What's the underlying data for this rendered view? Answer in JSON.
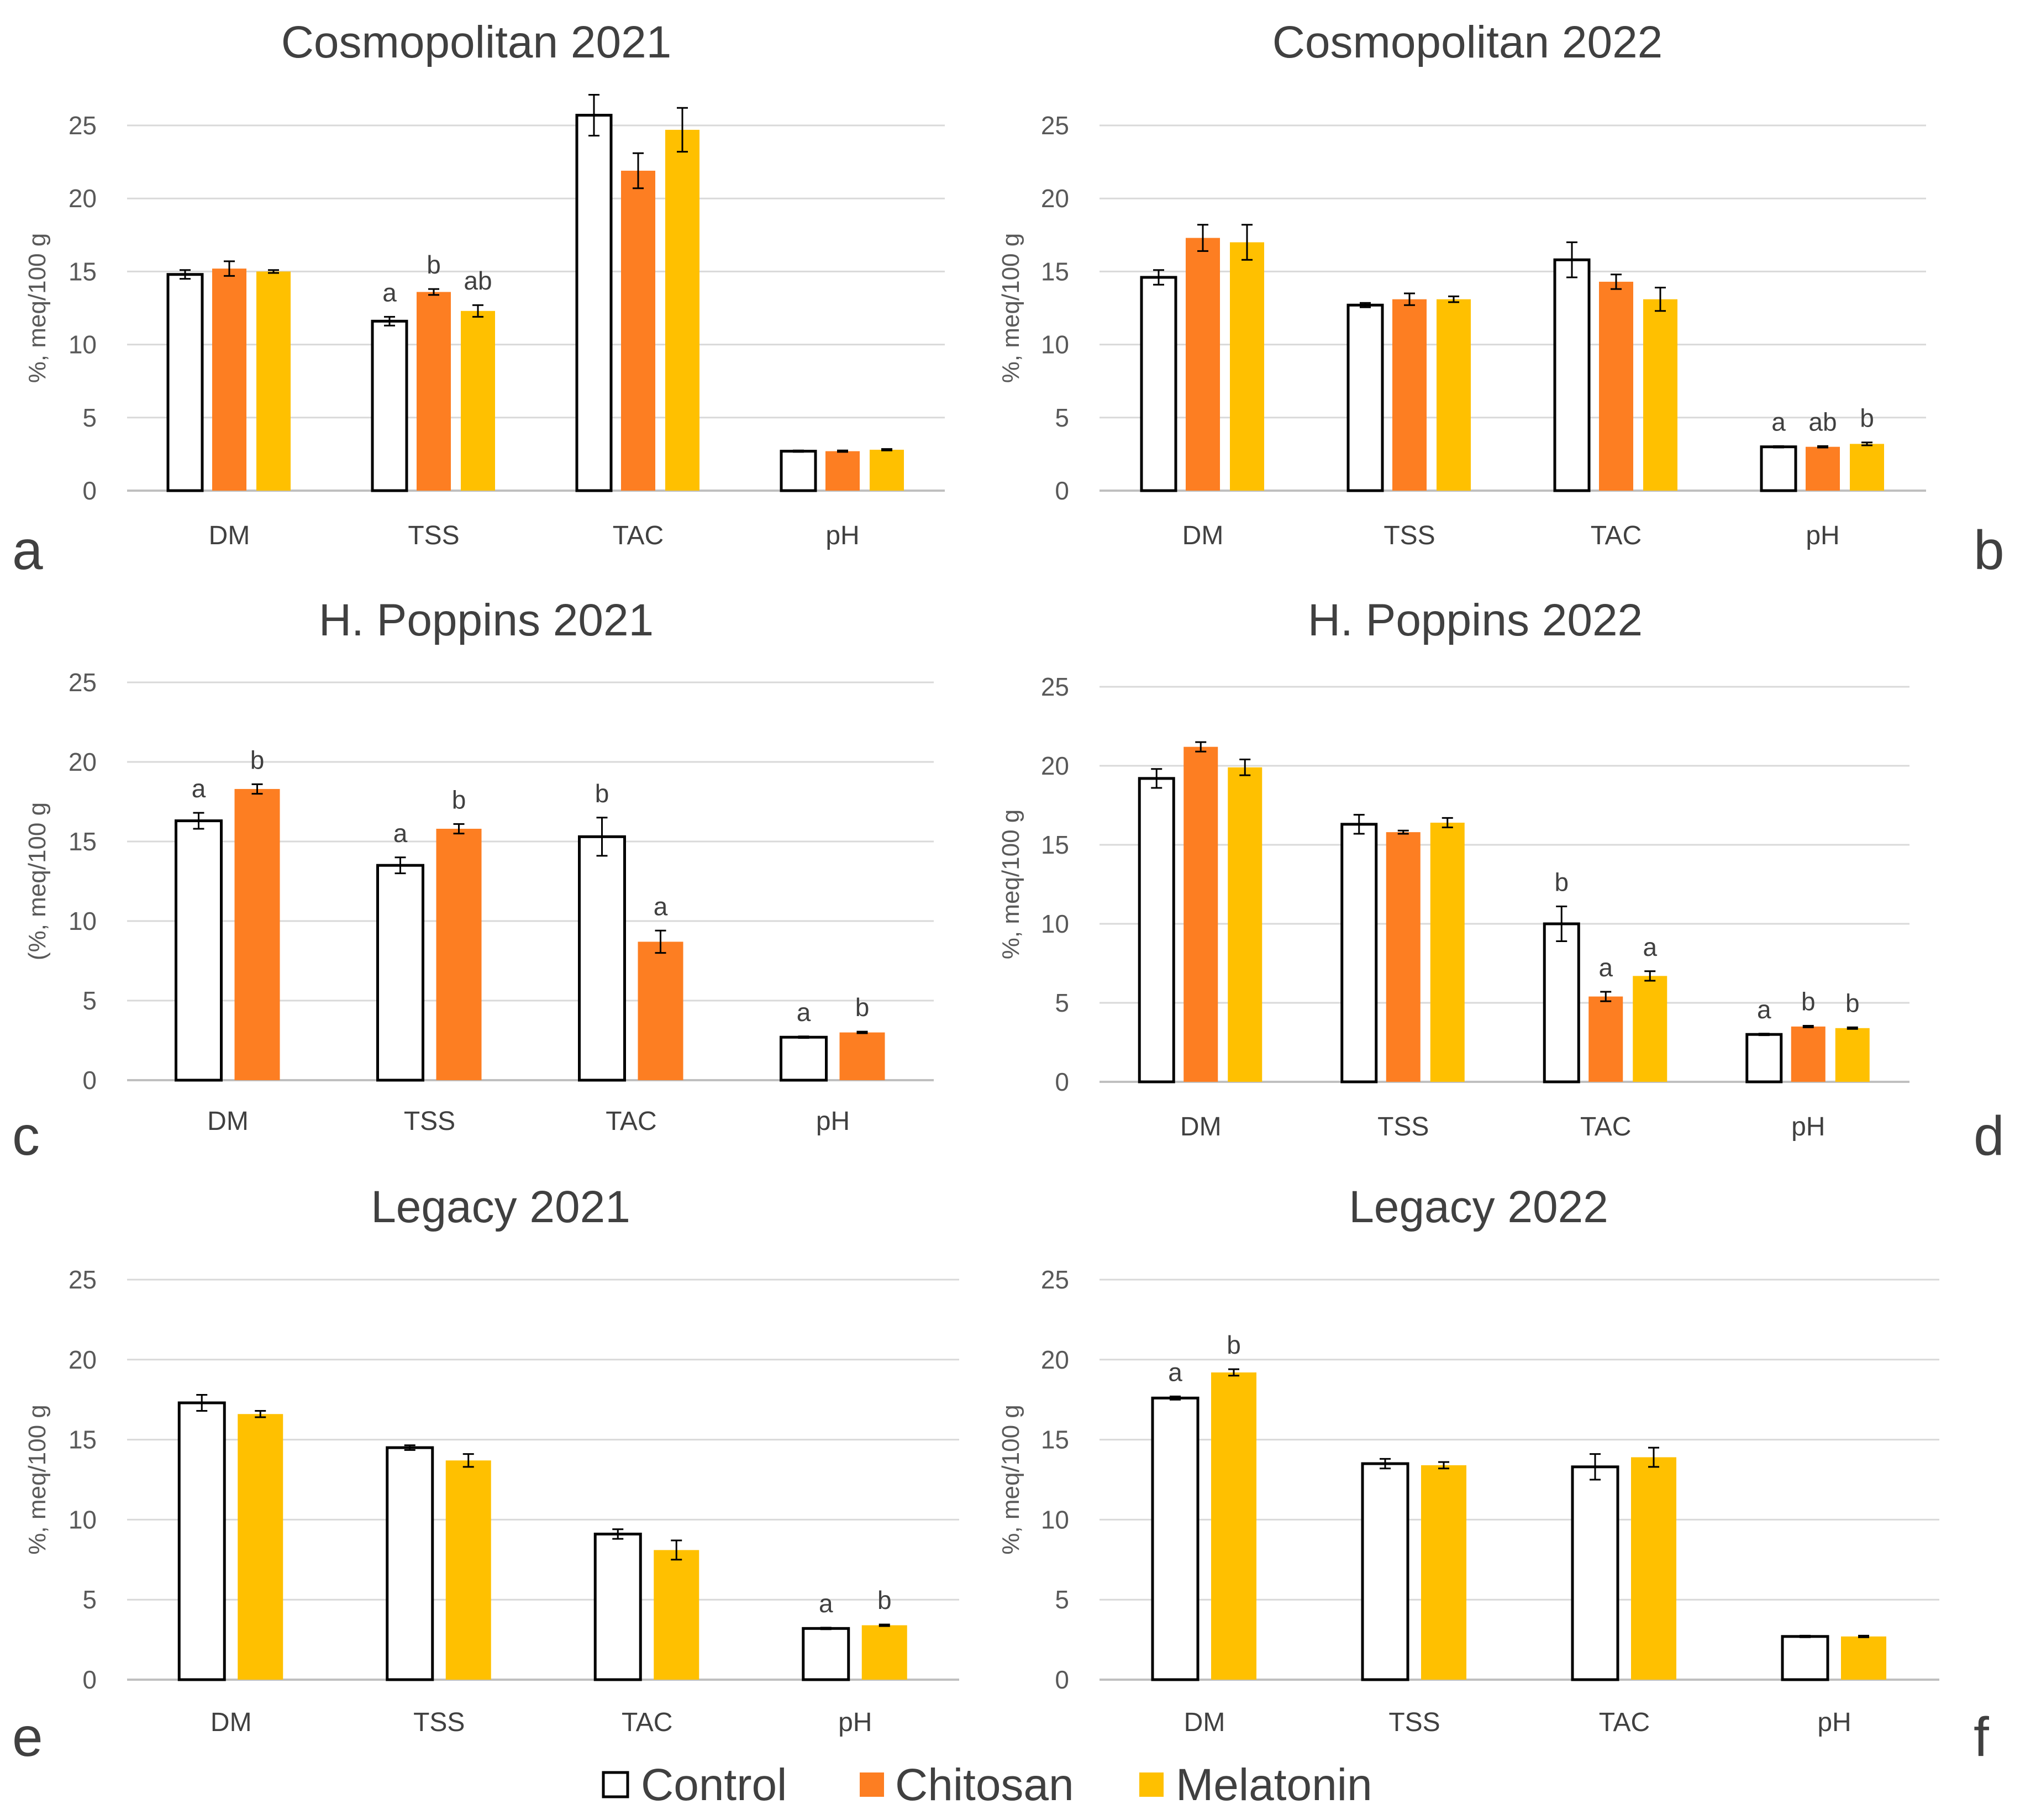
{
  "colors": {
    "Control": "#ffffff",
    "Chitosan": "#fd7e22",
    "Melatonin": "#ffc000",
    "grid": "#d9d9d9",
    "axis": "#bfbfbf",
    "outline": "#000000"
  },
  "legend": [
    {
      "label": "Control",
      "color": "#ffffff"
    },
    {
      "label": "Chitosan",
      "color": "#fd7e22"
    },
    {
      "label": "Melatonin",
      "color": "#ffc000"
    }
  ],
  "chart_data": [
    {
      "type": "bar",
      "letter": "a",
      "title": "Cosmopolitan 2021",
      "ylabel": "%, meq/100 g",
      "xlabel": "",
      "ylim": [
        0,
        25
      ],
      "yticks": [
        "0",
        "5",
        "10",
        "15",
        "20",
        "25"
      ],
      "categories": [
        "DM",
        "TSS",
        "TAC",
        "pH"
      ],
      "series": [
        {
          "name": "Control",
          "values": [
            14.8,
            11.6,
            25.7,
            2.7
          ],
          "errors": [
            0.3,
            0.3,
            1.4,
            0.05
          ],
          "sig": [
            "",
            "a",
            "",
            ""
          ]
        },
        {
          "name": "Chitosan",
          "values": [
            15.2,
            13.6,
            21.9,
            2.7
          ],
          "errors": [
            0.5,
            0.2,
            1.2,
            0.05
          ],
          "sig": [
            "",
            "b",
            "",
            ""
          ]
        },
        {
          "name": "Melatonin",
          "values": [
            15.0,
            12.3,
            24.7,
            2.8
          ],
          "errors": [
            0.1,
            0.4,
            1.5,
            0.05
          ],
          "sig": [
            "",
            "ab",
            "",
            ""
          ]
        }
      ]
    },
    {
      "type": "bar",
      "letter": "b",
      "title": "Cosmopolitan 2022",
      "ylabel": "%, meq/100 g",
      "xlabel": "",
      "ylim": [
        0,
        25
      ],
      "yticks": [
        "0",
        "5",
        "10",
        "15",
        "20",
        "25"
      ],
      "categories": [
        "DM",
        "TSS",
        "TAC",
        "pH"
      ],
      "series": [
        {
          "name": "Control",
          "values": [
            14.6,
            12.7,
            15.8,
            3.0
          ],
          "errors": [
            0.5,
            0.15,
            1.2,
            0.05
          ],
          "sig": [
            "",
            "",
            "",
            "a"
          ]
        },
        {
          "name": "Chitosan",
          "values": [
            17.3,
            13.1,
            14.3,
            3.0
          ],
          "errors": [
            0.9,
            0.4,
            0.5,
            0.05
          ],
          "sig": [
            "",
            "",
            "",
            "ab"
          ]
        },
        {
          "name": "Melatonin",
          "values": [
            17.0,
            13.1,
            13.1,
            3.2
          ],
          "errors": [
            1.2,
            0.2,
            0.8,
            0.1
          ],
          "sig": [
            "",
            "",
            "",
            "b"
          ]
        }
      ]
    },
    {
      "type": "bar",
      "letter": "c",
      "title": "H. Poppins 2021",
      "ylabel": "(%, meq/100 g",
      "xlabel": "",
      "ylim": [
        0,
        25
      ],
      "yticks": [
        "0",
        "5",
        "10",
        "15",
        "20",
        "25"
      ],
      "categories": [
        "DM",
        "TSS",
        "TAC",
        "pH"
      ],
      "series": [
        {
          "name": "Control",
          "values": [
            16.3,
            13.5,
            15.3,
            2.7
          ],
          "errors": [
            0.5,
            0.5,
            1.2,
            0.05
          ],
          "sig": [
            "a",
            "a",
            "b",
            "a"
          ]
        },
        {
          "name": "Chitosan",
          "values": [
            18.3,
            15.8,
            8.7,
            3.0
          ],
          "errors": [
            0.3,
            0.3,
            0.7,
            0.05
          ],
          "sig": [
            "b",
            "b",
            "a",
            "b"
          ]
        }
      ]
    },
    {
      "type": "bar",
      "letter": "d",
      "title": "H. Poppins 2022",
      "ylabel": "%, meq/100 g",
      "xlabel": "",
      "ylim": [
        0,
        25
      ],
      "yticks": [
        "0",
        "5",
        "10",
        "15",
        "20",
        "25"
      ],
      "categories": [
        "DM",
        "TSS",
        "TAC",
        "pH"
      ],
      "series": [
        {
          "name": "Control",
          "values": [
            19.2,
            16.3,
            10.0,
            3.0
          ],
          "errors": [
            0.6,
            0.6,
            1.1,
            0.05
          ],
          "sig": [
            "",
            "",
            "b",
            "a"
          ]
        },
        {
          "name": "Chitosan",
          "values": [
            21.2,
            15.8,
            5.4,
            3.5
          ],
          "errors": [
            0.3,
            0.1,
            0.3,
            0.05
          ],
          "sig": [
            "",
            "",
            "a",
            "b"
          ]
        },
        {
          "name": "Melatonin",
          "values": [
            19.9,
            16.4,
            6.7,
            3.4
          ],
          "errors": [
            0.5,
            0.3,
            0.3,
            0.05
          ],
          "sig": [
            "",
            "",
            "a",
            "b"
          ]
        }
      ]
    },
    {
      "type": "bar",
      "letter": "e",
      "title": "Legacy 2021",
      "ylabel": "%, meq/100 g",
      "xlabel": "",
      "ylim": [
        0,
        25
      ],
      "yticks": [
        "0",
        "5",
        "10",
        "15",
        "20",
        "25"
      ],
      "categories": [
        "DM",
        "TSS",
        "TAC",
        "pH"
      ],
      "series": [
        {
          "name": "Control",
          "values": [
            17.3,
            14.5,
            9.1,
            3.2
          ],
          "errors": [
            0.5,
            0.15,
            0.3,
            0.05
          ],
          "sig": [
            "",
            "",
            "",
            "a"
          ]
        },
        {
          "name": "Melatonin",
          "values": [
            16.6,
            13.7,
            8.1,
            3.4
          ],
          "errors": [
            0.2,
            0.4,
            0.6,
            0.05
          ],
          "sig": [
            "",
            "",
            "",
            "b"
          ]
        }
      ]
    },
    {
      "type": "bar",
      "letter": "f",
      "title": "Legacy 2022",
      "ylabel": "%, meq/100 g",
      "xlabel": "",
      "ylim": [
        0,
        25
      ],
      "yticks": [
        "0",
        "5",
        "10",
        "15",
        "20",
        "25"
      ],
      "categories": [
        "DM",
        "TSS",
        "TAC",
        "pH"
      ],
      "series": [
        {
          "name": "Control",
          "values": [
            17.6,
            13.5,
            13.3,
            2.7
          ],
          "errors": [
            0.1,
            0.3,
            0.8,
            0.05
          ],
          "sig": [
            "a",
            "",
            "",
            ""
          ]
        },
        {
          "name": "Melatonin",
          "values": [
            19.2,
            13.4,
            13.9,
            2.7
          ],
          "errors": [
            0.2,
            0.2,
            0.6,
            0.05
          ],
          "sig": [
            "b",
            "",
            "",
            ""
          ]
        }
      ]
    }
  ]
}
